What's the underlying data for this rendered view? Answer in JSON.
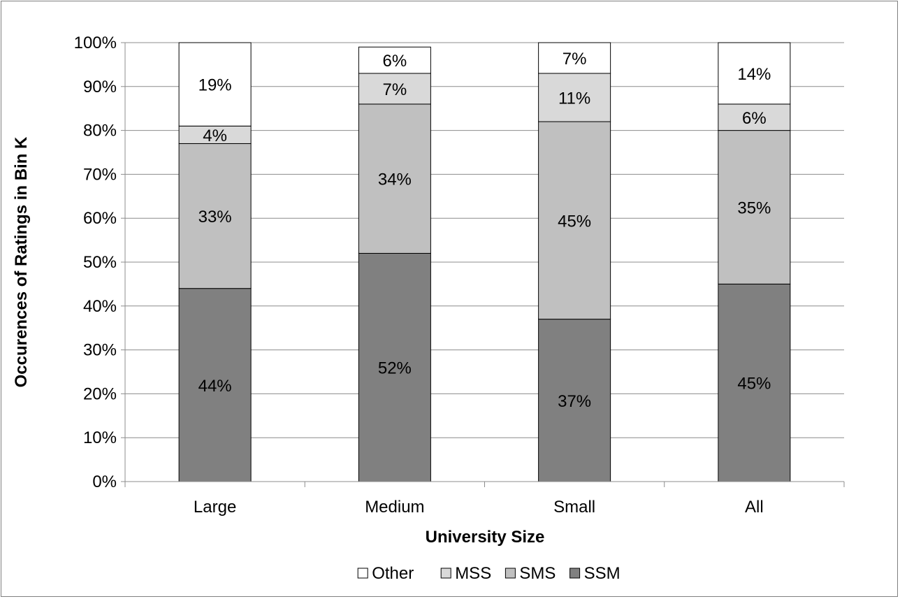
{
  "chart_data": {
    "type": "bar",
    "stacked": true,
    "title": "",
    "xlabel": "University Size",
    "ylabel": "Occurences of Ratings in Bin K",
    "categories": [
      "Large",
      "Medium",
      "Small",
      "All"
    ],
    "ylim": [
      0,
      100
    ],
    "yticks": [
      "0%",
      "10%",
      "20%",
      "30%",
      "40%",
      "50%",
      "60%",
      "70%",
      "80%",
      "90%",
      "100%"
    ],
    "grid": true,
    "legend_position": "bottom",
    "series": [
      {
        "name": "SSM",
        "values": [
          44,
          52,
          37,
          45
        ],
        "labels": [
          "44%",
          "52%",
          "37%",
          "45%"
        ],
        "color": "#808080"
      },
      {
        "name": "SMS",
        "values": [
          33,
          34,
          45,
          35
        ],
        "labels": [
          "33%",
          "34%",
          "45%",
          "35%"
        ],
        "color": "#c0c0c0"
      },
      {
        "name": "MSS",
        "values": [
          4,
          7,
          11,
          6
        ],
        "labels": [
          "4%",
          "7%",
          "11%",
          "6%"
        ],
        "color": "#d9d9d9"
      },
      {
        "name": "Other",
        "values": [
          19,
          6,
          7,
          14
        ],
        "labels": [
          "19%",
          "6%",
          "7%",
          "14%"
        ],
        "color": "#ffffff"
      }
    ],
    "legend_order": [
      "Other",
      "MSS",
      "SMS",
      "SSM"
    ]
  }
}
